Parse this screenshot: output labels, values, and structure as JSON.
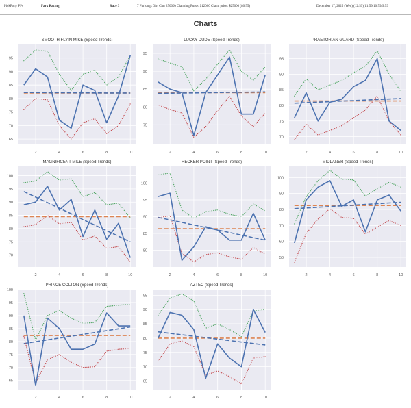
{
  "header": {
    "app": "PickPony PPs",
    "track": "Parx Racing",
    "race": "Race 3",
    "conditions": "7 Furlongs Dirt Clm 25000b Claiming Purse: $12000 Claim price: $25000 (80.55)",
    "date": "December 17, 2025 (Wed) (12:59)(11:59/10:59/9:59"
  },
  "page_title": "Charts",
  "colors": {
    "plot_bg": "#eaeaf2",
    "grid": "#ffffff",
    "speed": "#4c72b0",
    "average": "#dd8452",
    "upper": "#55a868",
    "lower": "#c44e52",
    "trend": "#4c72b0"
  },
  "chart_data": [
    {
      "type": "line",
      "title": "SMOOTH FLYIN MIKE (Speed Trends)",
      "x": [
        1,
        2,
        3,
        4,
        5,
        6,
        7,
        8,
        9,
        10
      ],
      "xticks": [
        "2",
        "4",
        "6",
        "8",
        "10"
      ],
      "yticks": [
        "65",
        "70",
        "75",
        "80",
        "85",
        "90",
        "95"
      ],
      "ylim": [
        63,
        100
      ],
      "grid": true,
      "series": [
        {
          "name": "speed",
          "style": "solid",
          "values": [
            85,
            91,
            88,
            72,
            69,
            85,
            83,
            71,
            81,
            96
          ]
        },
        {
          "name": "upper",
          "style": "dotted",
          "values": [
            94,
            98,
            97.5,
            89,
            83,
            89,
            90.5,
            85,
            88,
            96
          ]
        },
        {
          "name": "lower",
          "style": "dotted",
          "values": [
            76,
            80,
            79.5,
            70,
            65,
            71,
            72.5,
            67,
            70,
            78
          ]
        },
        {
          "name": "average",
          "style": "dashed",
          "values": [
            82,
            82,
            82,
            82,
            82,
            82,
            82,
            82,
            82,
            82
          ]
        },
        {
          "name": "trend",
          "style": "dashed",
          "values": [
            82.2,
            82.18,
            82.16,
            82.13,
            82.11,
            82.09,
            82.07,
            82.04,
            82.02,
            82
          ]
        }
      ]
    },
    {
      "type": "line",
      "title": "LUCKY DUDE (Speed Trends)",
      "x": [
        1,
        2,
        3,
        4,
        5,
        6,
        7,
        8,
        9,
        10
      ],
      "xticks": [
        "2",
        "4",
        "6",
        "8",
        "10"
      ],
      "yticks": [
        "75",
        "80",
        "85",
        "90",
        "95"
      ],
      "ylim": [
        69.5,
        97.5
      ],
      "grid": true,
      "series": [
        {
          "name": "speed",
          "style": "solid",
          "values": [
            87,
            85,
            84,
            72,
            84,
            89,
            94,
            78,
            78,
            89
          ]
        },
        {
          "name": "upper",
          "style": "dotted",
          "values": [
            93.5,
            92.3,
            91.2,
            84.5,
            87.8,
            92,
            96,
            90,
            87.5,
            91.2
          ]
        },
        {
          "name": "lower",
          "style": "dotted",
          "values": [
            80.5,
            79.3,
            78.3,
            71.5,
            74.5,
            79,
            83,
            77.5,
            74.5,
            78.3
          ]
        },
        {
          "name": "average",
          "style": "dashed",
          "values": [
            84,
            84,
            84,
            84,
            84,
            84,
            84,
            84,
            84,
            84
          ]
        },
        {
          "name": "trend",
          "style": "dashed",
          "values": [
            83.8,
            83.84,
            83.89,
            83.93,
            83.98,
            84.02,
            84.07,
            84.11,
            84.16,
            84.2
          ]
        }
      ]
    },
    {
      "type": "line",
      "title": "PRAETORIAN GUARD (Speed Trends)",
      "x": [
        1,
        2,
        3,
        4,
        5,
        6,
        7,
        8,
        9,
        10
      ],
      "xticks": [
        "2",
        "4",
        "6",
        "8",
        "10"
      ],
      "yticks": [
        "70",
        "75",
        "80",
        "85",
        "90",
        "95"
      ],
      "ylim": [
        67.5,
        99.5
      ],
      "grid": true,
      "series": [
        {
          "name": "speed",
          "style": "solid",
          "values": [
            76,
            84,
            75,
            81,
            82,
            86,
            88,
            95,
            75,
            72
          ]
        },
        {
          "name": "upper",
          "style": "dotted",
          "values": [
            83,
            88.5,
            85,
            86.5,
            88,
            90.5,
            92.5,
            97.5,
            90,
            84.5
          ]
        },
        {
          "name": "lower",
          "style": "dotted",
          "values": [
            69,
            74,
            70.5,
            72,
            73.5,
            76,
            78.5,
            83,
            75,
            70.5
          ]
        },
        {
          "name": "average",
          "style": "dashed",
          "values": [
            81.4,
            81.4,
            81.4,
            81.4,
            81.4,
            81.4,
            81.4,
            81.4,
            81.4,
            81.4
          ]
        },
        {
          "name": "trend",
          "style": "dashed",
          "values": [
            80.7,
            80.87,
            81.03,
            81.2,
            81.37,
            81.53,
            81.7,
            81.87,
            82.03,
            82.2
          ]
        }
      ]
    },
    {
      "type": "line",
      "title": "MAGNIFICENT MILE (Speed Trends)",
      "x": [
        1,
        2,
        3,
        4,
        5,
        6,
        7,
        8,
        9,
        10
      ],
      "xticks": [
        "2",
        "4",
        "6",
        "8",
        "10"
      ],
      "yticks": [
        "70",
        "75",
        "80",
        "85",
        "90",
        "95",
        "100"
      ],
      "ylim": [
        65.5,
        103.5
      ],
      "grid": true,
      "series": [
        {
          "name": "speed",
          "style": "solid",
          "values": [
            89,
            90,
            96,
            87,
            91,
            77,
            87,
            76,
            82,
            69
          ]
        },
        {
          "name": "upper",
          "style": "dotted",
          "values": [
            97.3,
            98,
            101.5,
            98.3,
            98.8,
            92,
            93.6,
            89,
            89.6,
            84
          ]
        },
        {
          "name": "lower",
          "style": "dotted",
          "values": [
            80.7,
            81.5,
            85,
            81.8,
            82.3,
            75.7,
            77.2,
            72.5,
            73.2,
            67.3
          ]
        },
        {
          "name": "average",
          "style": "dashed",
          "values": [
            84.5,
            84.5,
            84.5,
            84.5,
            84.5,
            84.5,
            84.5,
            84.5,
            84.5,
            84.5
          ]
        },
        {
          "name": "trend",
          "style": "dashed",
          "values": [
            94,
            91.9,
            89.8,
            87.7,
            85.6,
            83.4,
            81.3,
            79.2,
            77.1,
            75
          ]
        }
      ]
    },
    {
      "type": "line",
      "title": "RECKER POINT (Speed Trends)",
      "x": [
        1,
        2,
        3,
        4,
        5,
        6,
        7,
        8,
        9,
        10
      ],
      "xticks": [
        "2",
        "4",
        "6",
        "8",
        "10"
      ],
      "yticks": [
        "80",
        "85",
        "90",
        "95",
        "100"
      ],
      "ylim": [
        75,
        105
      ],
      "grid": true,
      "series": [
        {
          "name": "speed",
          "style": "solid",
          "values": [
            96,
            97,
            77,
            81,
            87,
            86,
            83,
            83,
            91,
            83
          ]
        },
        {
          "name": "upper",
          "style": "dotted",
          "values": [
            102.5,
            103,
            92,
            89.5,
            91.5,
            92,
            90.7,
            90,
            93.8,
            91.7
          ]
        },
        {
          "name": "lower",
          "style": "dotted",
          "values": [
            89.7,
            90.3,
            79,
            76.5,
            78.7,
            79.2,
            78,
            77.3,
            80.8,
            78.8
          ]
        },
        {
          "name": "average",
          "style": "dashed",
          "values": [
            86.4,
            86.4,
            86.4,
            86.4,
            86.4,
            86.4,
            86.4,
            86.4,
            86.4,
            86.4
          ]
        },
        {
          "name": "trend",
          "style": "dashed",
          "values": [
            89.8,
            89.04,
            88.29,
            87.53,
            86.78,
            86.02,
            85.27,
            84.51,
            83.76,
            83
          ]
        }
      ]
    },
    {
      "type": "line",
      "title": "MIDLANER (Speed Trends)",
      "x": [
        1,
        2,
        3,
        4,
        5,
        6,
        7,
        8,
        9,
        10
      ],
      "xticks": [
        "2",
        "4",
        "6",
        "8",
        "10"
      ],
      "yticks": [
        "50",
        "60",
        "70",
        "80",
        "90",
        "100"
      ],
      "ylim": [
        44,
        107
      ],
      "grid": true,
      "series": [
        {
          "name": "speed",
          "style": "solid",
          "values": [
            59,
            86,
            94,
            98,
            82,
            86,
            66,
            86,
            89,
            79
          ]
        },
        {
          "name": "upper",
          "style": "dotted",
          "values": [
            71,
            88,
            98,
            104.5,
            99,
            98.5,
            88.5,
            93,
            97,
            94
          ]
        },
        {
          "name": "lower",
          "style": "dotted",
          "values": [
            47,
            65,
            74,
            80.5,
            75,
            74.5,
            64.5,
            69,
            73,
            70
          ]
        },
        {
          "name": "average",
          "style": "dashed",
          "values": [
            82.5,
            82.5,
            82.5,
            82.5,
            82.5,
            82.5,
            82.5,
            82.5,
            82.5,
            82.5
          ]
        },
        {
          "name": "trend",
          "style": "dashed",
          "values": [
            80.5,
            80.94,
            81.39,
            81.83,
            82.28,
            82.72,
            83.17,
            83.61,
            84.06,
            84.5
          ]
        }
      ]
    },
    {
      "type": "line",
      "title": "PRINCE COLTON (Speed Trends)",
      "x": [
        1,
        2,
        3,
        4,
        5,
        6,
        7,
        8,
        9,
        10
      ],
      "xticks": [
        "2",
        "4",
        "6",
        "8",
        "10"
      ],
      "yticks": [
        "65",
        "70",
        "75",
        "80",
        "85",
        "90",
        "95",
        "100"
      ],
      "ylim": [
        61.5,
        100
      ],
      "grid": true,
      "series": [
        {
          "name": "speed",
          "style": "solid",
          "values": [
            90,
            63,
            89,
            85,
            77,
            77,
            79,
            91,
            86,
            86
          ]
        },
        {
          "name": "upper",
          "style": "dotted",
          "values": [
            98.5,
            80.5,
            90,
            92,
            89,
            87,
            87.3,
            93.5,
            94,
            94.3
          ]
        },
        {
          "name": "lower",
          "style": "dotted",
          "values": [
            82,
            64,
            73,
            75,
            72,
            70,
            70.3,
            76.3,
            77,
            77.3
          ]
        },
        {
          "name": "average",
          "style": "dashed",
          "values": [
            82.3,
            82.3,
            82.3,
            82.3,
            82.3,
            82.3,
            82.3,
            82.3,
            82.3,
            82.3
          ]
        },
        {
          "name": "trend",
          "style": "dashed",
          "values": [
            79.2,
            79.91,
            80.62,
            81.33,
            82.04,
            82.76,
            83.47,
            84.18,
            84.89,
            85.6
          ]
        }
      ]
    },
    {
      "type": "line",
      "title": "AZTEC (Speed Trends)",
      "x": [
        1,
        2,
        3,
        4,
        5,
        6,
        7,
        8,
        9,
        10
      ],
      "xticks": [
        "2",
        "4",
        "6",
        "8",
        "10"
      ],
      "yticks": [
        "65",
        "70",
        "75",
        "80",
        "85",
        "90",
        "95"
      ],
      "ylim": [
        62,
        97
      ],
      "grid": true,
      "series": [
        {
          "name": "speed",
          "style": "solid",
          "values": [
            80,
            89,
            88,
            83,
            66,
            78,
            73,
            70,
            90,
            82
          ]
        },
        {
          "name": "upper",
          "style": "dotted",
          "values": [
            88,
            94,
            95.5,
            93,
            83.5,
            85,
            83,
            80.5,
            89.5,
            90
          ]
        },
        {
          "name": "lower",
          "style": "dotted",
          "values": [
            72,
            78,
            79,
            77,
            67,
            68.5,
            66.5,
            64,
            73,
            73.5
          ]
        },
        {
          "name": "average",
          "style": "dashed",
          "values": [
            80,
            80,
            80,
            80,
            80,
            80,
            80,
            80,
            80,
            80
          ]
        },
        {
          "name": "trend",
          "style": "dashed",
          "values": [
            82.2,
            81.69,
            81.18,
            80.67,
            80.16,
            79.64,
            79.13,
            78.62,
            78.11,
            77.6
          ]
        }
      ]
    }
  ]
}
